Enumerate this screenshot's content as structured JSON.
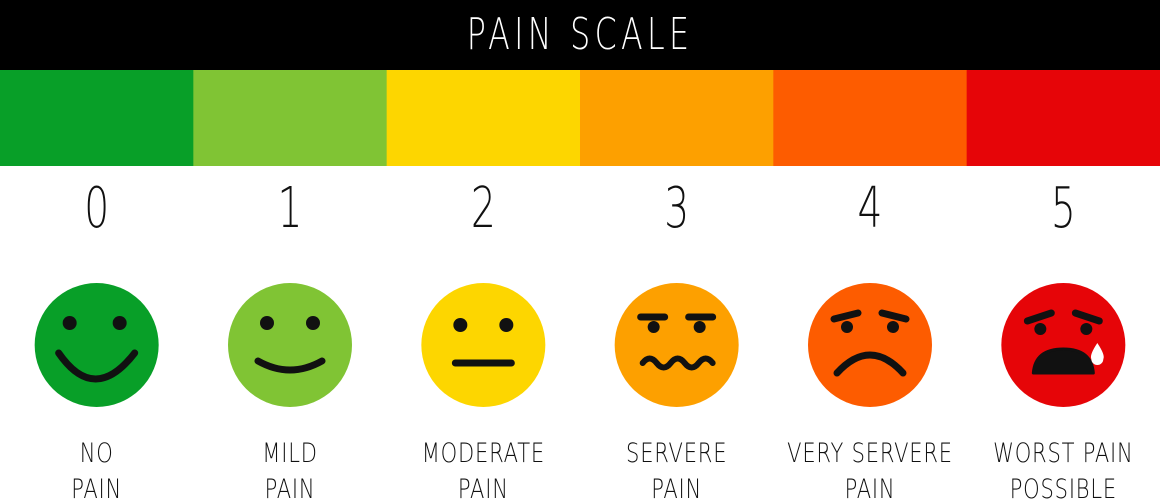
{
  "title": "PAIN SCALE",
  "levels": [
    {
      "score": "0",
      "label": [
        "NO",
        "PAIN"
      ],
      "color": "#089f28"
    },
    {
      "score": "1",
      "label": [
        "MILD",
        "PAIN"
      ],
      "color": "#80c434"
    },
    {
      "score": "2",
      "label": [
        "MODERATE",
        "PAIN"
      ],
      "color": "#fdd600"
    },
    {
      "score": "3",
      "label": [
        "SERVERE",
        "PAIN"
      ],
      "color": "#fda000"
    },
    {
      "score": "4",
      "label": [
        "VERY SERVERE",
        "PAIN"
      ],
      "color": "#fd5c00"
    },
    {
      "score": "5",
      "label": [
        "WORST PAIN",
        "POSSIBLE"
      ],
      "color": "#e60508"
    }
  ]
}
